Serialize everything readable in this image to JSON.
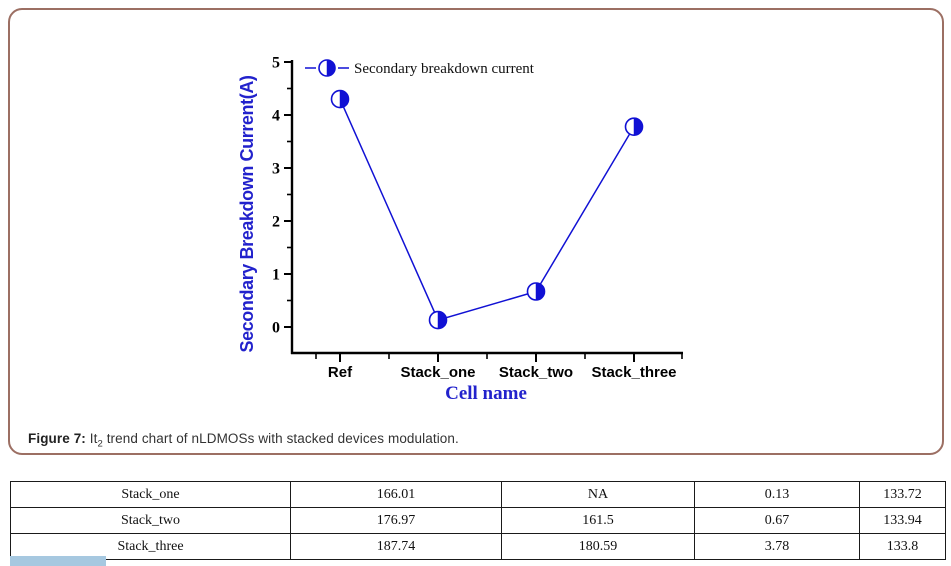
{
  "figure": {
    "caption": {
      "label": "Figure 7:",
      "pre_sub": " It",
      "sub": "2",
      "post_sub": " trend chart of nLDMOSs with stacked devices modulation."
    }
  },
  "chart_data": {
    "type": "line",
    "categories": [
      "Ref",
      "Stack_one",
      "Stack_two",
      "Stack_three"
    ],
    "series": [
      {
        "name": "Secondary breakdown current",
        "values": [
          4.3,
          0.13,
          0.67,
          3.78
        ]
      }
    ],
    "xlabel": "Cell name",
    "ylabel": "Secondary Breakdown Current(A)",
    "ylim": [
      -0.5,
      5
    ],
    "yticks": [
      0,
      1,
      2,
      3,
      4,
      5
    ],
    "legend_position": "top-left",
    "grid": false,
    "marker_style": "half-filled-circle",
    "colors": {
      "series": "#1111d4",
      "axis_label": "#2222cc",
      "tick_text": "#000000",
      "axis": "#000000"
    }
  },
  "table": {
    "rows": [
      [
        "Stack_one",
        "166.01",
        "NA",
        "0.13",
        "133.72"
      ],
      [
        "Stack_two",
        "176.97",
        "161.5",
        "0.67",
        "133.94"
      ],
      [
        "Stack_three",
        "187.74",
        "180.59",
        "3.78",
        "133.8"
      ]
    ]
  }
}
